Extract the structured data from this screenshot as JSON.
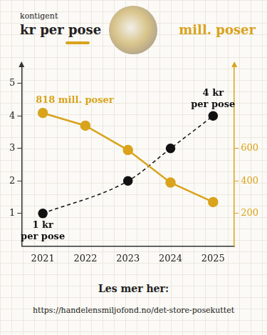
{
  "chart_data": {
    "type": "line",
    "y_label_note": "kontigent",
    "y_label": "kr per pose",
    "y2_label": "mill. poser",
    "categories": [
      "2021",
      "2022",
      "2023",
      "2024",
      "2025"
    ],
    "series": [
      {
        "name": "mill. poser",
        "color": "#d9a31c",
        "values": [
          818,
          740,
          590,
          390,
          270
        ],
        "axis": "y2",
        "type": "line",
        "marker": "circle",
        "line_style": "solid"
      },
      {
        "name": "kr per pose",
        "color": "#111111",
        "values": [
          1,
          null,
          2,
          3,
          4
        ],
        "axis": "y",
        "type": "line",
        "marker": "circle",
        "line_style": "dashed"
      }
    ],
    "ylim": [
      0,
      5.5
    ],
    "yticks": [
      1,
      2,
      3,
      4,
      5
    ],
    "y2lim": [
      0,
      1100
    ],
    "y2ticks": [
      200,
      400,
      600
    ],
    "grid": false,
    "annotations": [
      {
        "text": "818 mill. poser",
        "x": "2021",
        "y": 818,
        "axis": "y2"
      },
      {
        "text": "1 kr\nper pose",
        "x": "2021",
        "y": 1,
        "axis": "y"
      },
      {
        "text": "4 kr\nper pose",
        "x": "2025",
        "y": 4,
        "axis": "y"
      }
    ],
    "footer": {
      "title": "Les mer her:",
      "url": "https://handelensmiljofond.no/det-store-posekuttet"
    }
  }
}
